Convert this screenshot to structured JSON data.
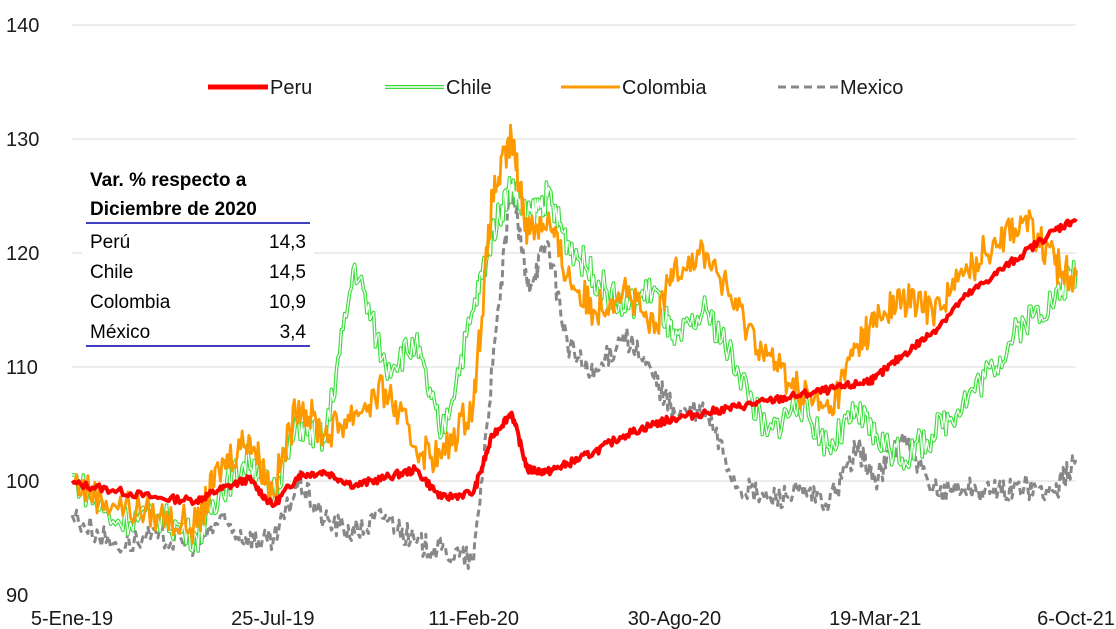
{
  "chart_data": {
    "type": "line",
    "title": "",
    "xlabel": "",
    "ylabel": "",
    "ylim": [
      90,
      140
    ],
    "yticks": [
      90,
      100,
      110,
      120,
      130,
      140
    ],
    "x_tick_labels": [
      "5-Ene-19",
      "25-Jul-19",
      "11-Feb-20",
      "30-Ago-20",
      "19-Mar-21",
      "6-Oct-21"
    ],
    "grid": "horizontal",
    "legend_position": "top",
    "x_dates": [
      "2019-01-05",
      "2019-02-15",
      "2019-04-01",
      "2019-05-10",
      "2019-06-01",
      "2019-07-01",
      "2019-07-25",
      "2019-08-20",
      "2019-09-15",
      "2019-10-15",
      "2019-11-15",
      "2019-12-15",
      "2020-01-10",
      "2020-02-11",
      "2020-03-01",
      "2020-03-20",
      "2020-04-05",
      "2020-04-25",
      "2020-05-15",
      "2020-06-10",
      "2020-07-10",
      "2020-08-10",
      "2020-08-30",
      "2020-10-01",
      "2020-11-01",
      "2020-12-01",
      "2021-01-01",
      "2021-02-01",
      "2021-03-01",
      "2021-03-19",
      "2021-04-15",
      "2021-05-15",
      "2021-06-15",
      "2021-07-15",
      "2021-08-15",
      "2021-09-15",
      "2021-10-06"
    ],
    "series": [
      {
        "name": "Peru",
        "color": "#ff0000",
        "style": "solid-thick",
        "values": [
          99.8,
          99.2,
          98.5,
          98.3,
          99.2,
          100.2,
          97.8,
          100.5,
          100.8,
          99.6,
          100.3,
          101.0,
          98.5,
          99.0,
          104.0,
          106.0,
          101.0,
          100.8,
          101.5,
          102.5,
          104.0,
          105.0,
          105.5,
          106.0,
          106.5,
          107.0,
          107.5,
          108.0,
          108.5,
          109.0,
          111.0,
          113.0,
          116.0,
          118.0,
          120.0,
          122.0,
          123.0
        ]
      },
      {
        "name": "Chile",
        "color": "#3ddc3d",
        "style": "double",
        "values": [
          100.5,
          96.5,
          97.0,
          95.0,
          99.0,
          102.0,
          99.0,
          105.0,
          103.5,
          119.0,
          110.0,
          112.0,
          104.0,
          115.0,
          122.0,
          126.0,
          123.0,
          125.0,
          121.0,
          118.0,
          115.0,
          117.0,
          112.0,
          115.0,
          110.0,
          104.0,
          107.0,
          103.0,
          106.0,
          104.0,
          102.0,
          104.0,
          107.0,
          110.0,
          114.0,
          116.0,
          118.5
        ]
      },
      {
        "name": "Colombia",
        "color": "#ff9900",
        "style": "solid",
        "values": [
          100.0,
          98.0,
          97.0,
          96.0,
          101.0,
          104.0,
          99.0,
          107.0,
          104.0,
          106.0,
          108.0,
          103.0,
          102.0,
          107.0,
          125.0,
          130.0,
          122.0,
          123.0,
          118.0,
          115.0,
          117.0,
          113.0,
          119.0,
          120.0,
          115.0,
          111.0,
          108.0,
          106.0,
          112.0,
          114.0,
          116.0,
          115.0,
          118.0,
          121.0,
          123.0,
          119.0,
          118.0
        ]
      },
      {
        "name": "Mexico",
        "color": "#888888",
        "style": "dashed",
        "values": [
          97.0,
          94.5,
          95.0,
          94.5,
          96.5,
          95.0,
          94.5,
          100.0,
          96.5,
          95.5,
          97.0,
          94.5,
          94.0,
          93.0,
          110.0,
          126.0,
          117.0,
          121.0,
          112.0,
          109.0,
          113.0,
          109.0,
          106.0,
          106.0,
          99.5,
          98.5,
          99.0,
          98.0,
          103.0,
          100.0,
          104.0,
          99.0,
          99.5,
          99.0,
          99.5,
          99.0,
          102.0
        ]
      }
    ],
    "table": {
      "title_line1": "Var. % respecto a",
      "title_line2": "Diciembre de 2020",
      "rows": [
        {
          "label": "Perú",
          "value": "14,3"
        },
        {
          "label": "Chile",
          "value": "14,5"
        },
        {
          "label": "Colombia",
          "value": "10,9"
        },
        {
          "label": "México",
          "value": "3,4"
        }
      ]
    }
  }
}
